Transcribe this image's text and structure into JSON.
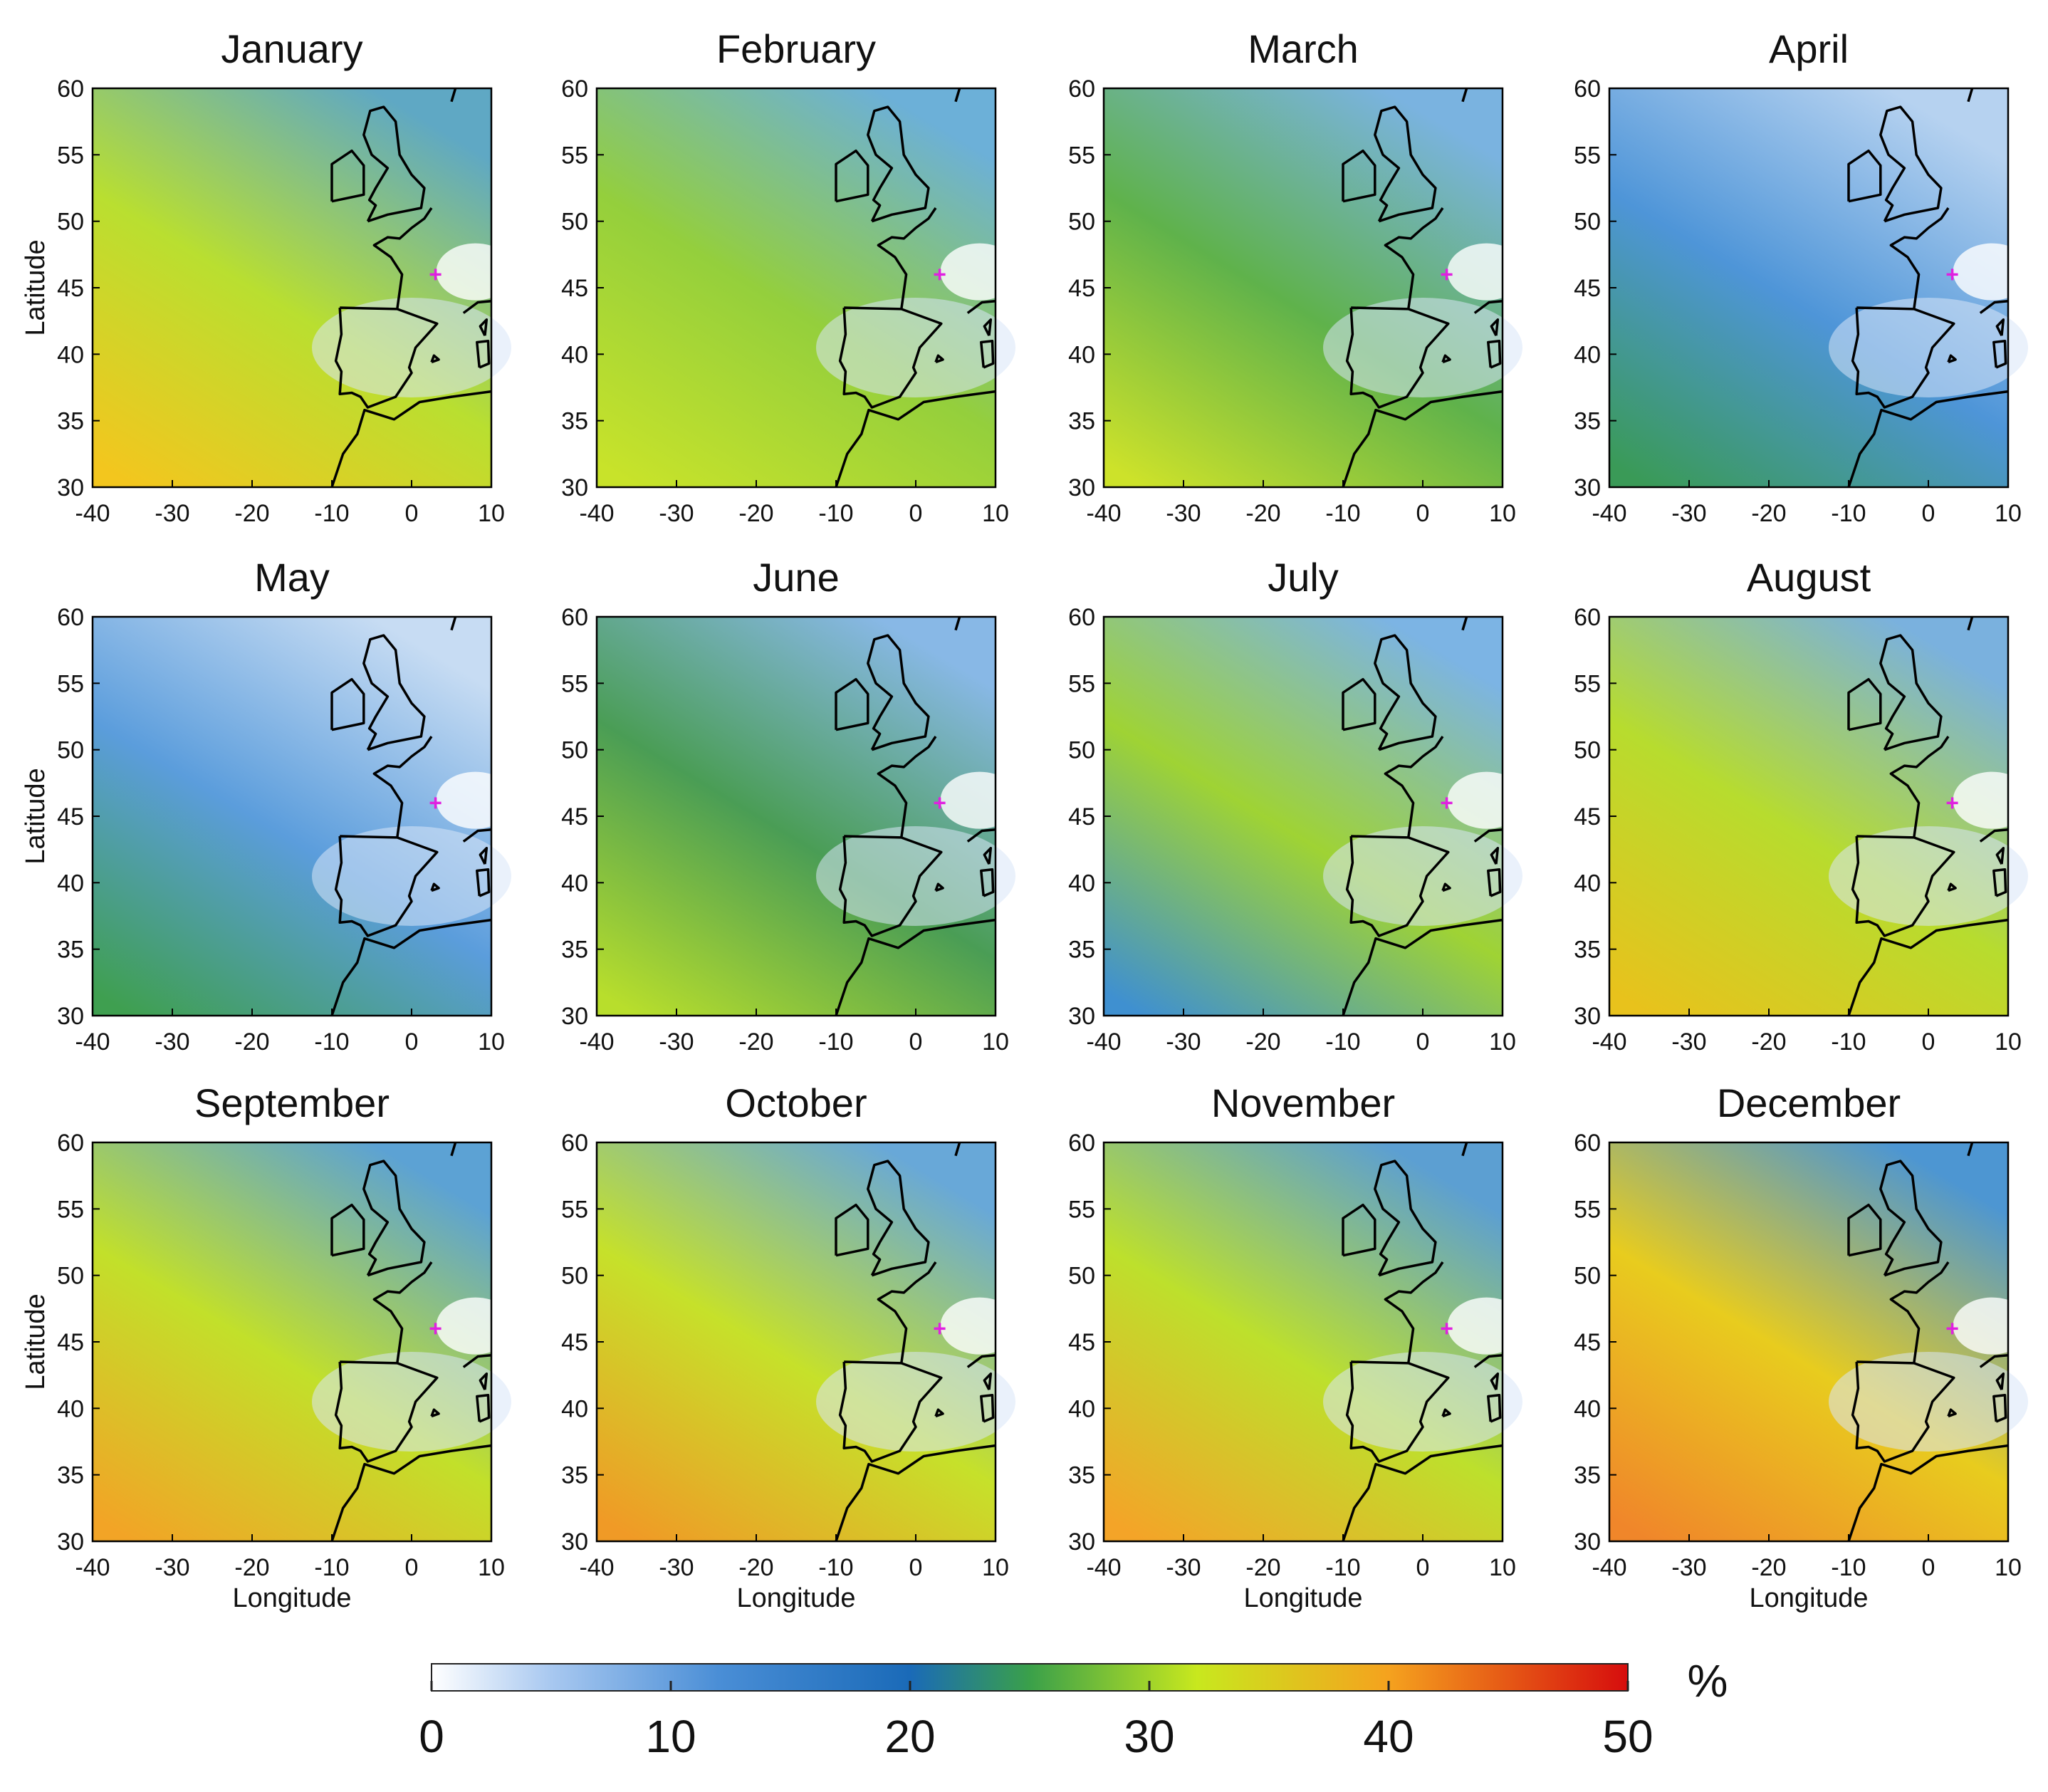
{
  "months": [
    "January",
    "February",
    "March",
    "April",
    "May",
    "June",
    "July",
    "August",
    "September",
    "October",
    "November",
    "December"
  ],
  "maps": {
    "panel_titles": [
      "January",
      "February",
      "March",
      "April",
      "May",
      "June",
      "July",
      "August",
      "September",
      "October",
      "November",
      "December"
    ],
    "xlabel": "Longitude",
    "ylabel": "Latitude",
    "x_ticks": [
      "-40",
      "-30",
      "-20",
      "-10",
      "0",
      "10"
    ],
    "y_ticks": [
      "30",
      "35",
      "40",
      "45",
      "50",
      "55",
      "60"
    ],
    "lon_range": [
      -40,
      10
    ],
    "lat_range": [
      30,
      60
    ],
    "marker": {
      "lon": 3,
      "lat": 46,
      "color": "#e020e0"
    }
  },
  "colorbar": {
    "unit": "%",
    "ticks": [
      "0",
      "10",
      "20",
      "30",
      "40",
      "50"
    ],
    "range": [
      0,
      50
    ],
    "stops": [
      {
        "value": 0,
        "color": "#ffffff"
      },
      {
        "value": 5,
        "color": "#a8c8f0"
      },
      {
        "value": 12,
        "color": "#4a8ed6"
      },
      {
        "value": 20,
        "color": "#1a6ab8"
      },
      {
        "value": 25,
        "color": "#3aa04a"
      },
      {
        "value": 32,
        "color": "#c8e81e"
      },
      {
        "value": 40,
        "color": "#f5a21e"
      },
      {
        "value": 50,
        "color": "#d60d0d"
      }
    ]
  }
}
